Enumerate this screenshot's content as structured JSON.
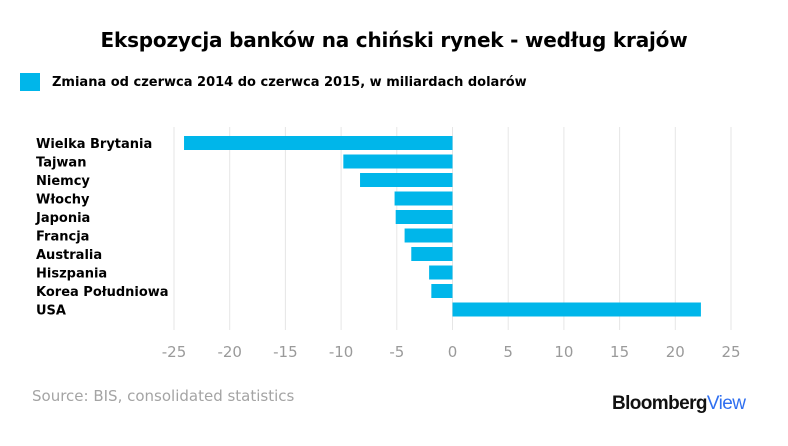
{
  "chart_data": {
    "type": "bar",
    "orientation": "horizontal",
    "title": "Ekspozycja banków na chiński rynek - według krajów",
    "legend_position": "top-left",
    "grid": true,
    "categories": [
      "Wielka Brytania",
      "Tajwan",
      "Niemcy",
      "Włochy",
      "Japonia",
      "Francja",
      "Australia",
      "Hiszpania",
      "Korea Południowa",
      "USA"
    ],
    "series": [
      {
        "name": "Zmiana od czerwca 2014 do czerwca 2015, w miliardach dolarów",
        "values": [
          -24.1,
          -9.8,
          -8.3,
          -5.2,
          -5.1,
          -4.3,
          -3.7,
          -2.1,
          -1.9,
          22.3
        ],
        "color": "#00b6ea"
      }
    ],
    "xlim": [
      -25,
      25
    ],
    "xticks": [
      -25,
      -20,
      -15,
      -10,
      -5,
      0,
      5,
      10,
      15,
      20,
      25
    ],
    "xtick_labels": [
      "-25",
      "-20",
      "-15",
      "-10",
      "-5",
      "0",
      "5",
      "10",
      "15",
      "20",
      "25"
    ],
    "xlabel": "",
    "ylabel": ""
  },
  "source": "Source: BIS, consolidated statistics",
  "brand": {
    "part1": "Bloomberg",
    "part2": "View",
    "part2_color": "#2f6ff0"
  },
  "colors": {
    "bar": "#00b6ea",
    "grid": "#e6e6e6",
    "tick_label": "#9a9a9a"
  }
}
